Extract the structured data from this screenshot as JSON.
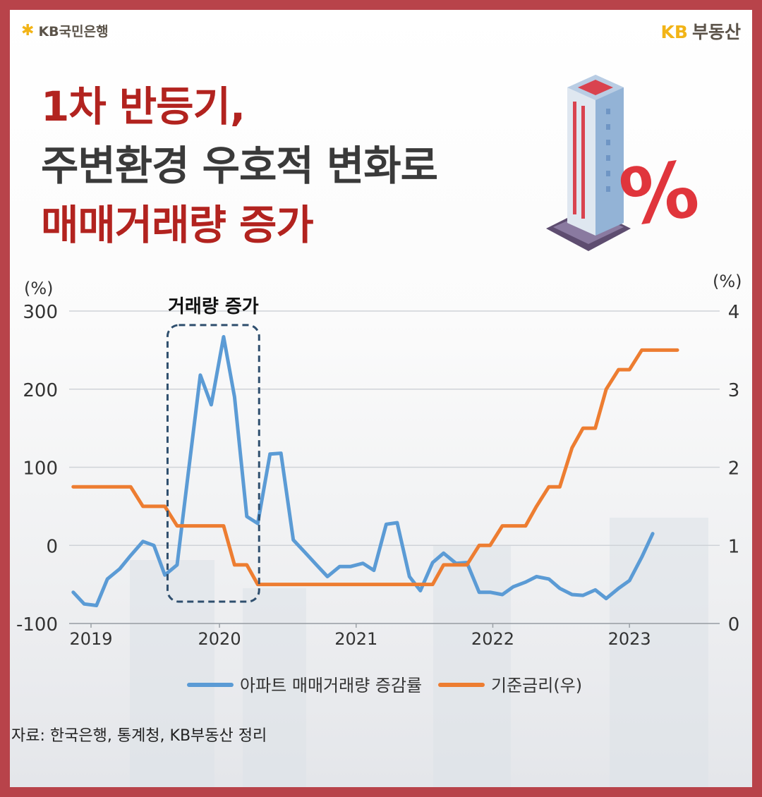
{
  "header": {
    "left_brand": "KB국민은행",
    "right_brand_kb": "KB",
    "right_brand_text": "부동산"
  },
  "title": {
    "line1": "1차 반등기,",
    "line2": "주변환경 우호적 변화로",
    "line3": "매매거래량 증가"
  },
  "source": "자료: 한국은행, 통계청, KB부동산 정리",
  "chart_data": {
    "type": "line",
    "left_axis_unit": "(%)",
    "right_axis_unit": "(%)",
    "y_left_range": [
      -100,
      300
    ],
    "y_left_ticks": [
      "300",
      "200",
      "100",
      "0",
      "-100"
    ],
    "y_right_range": [
      0,
      4
    ],
    "y_right_ticks": [
      "4",
      "3",
      "2",
      "1",
      "0"
    ],
    "x_range": [
      2018.9,
      2023.66
    ],
    "x_ticks": [
      {
        "value": 2019.06,
        "label": "2019"
      },
      {
        "value": 2020.0,
        "label": "2020"
      },
      {
        "value": 2021.0,
        "label": "2021"
      },
      {
        "value": 2022.0,
        "label": "2022"
      },
      {
        "value": 2023.0,
        "label": "2023"
      }
    ],
    "annotation": {
      "label": "거래량 증가",
      "x_range": [
        2019.62,
        2020.29
      ],
      "y_range": [
        -72,
        282
      ]
    },
    "series": [
      {
        "name": "아파트 매매거래량 증감률",
        "axis": "left",
        "color": "#5b9bd5",
        "points": [
          [
            2018.93,
            -60
          ],
          [
            2019.01,
            -75
          ],
          [
            2019.1,
            -77
          ],
          [
            2019.18,
            -43
          ],
          [
            2019.27,
            -30
          ],
          [
            2019.35,
            -13
          ],
          [
            2019.44,
            5
          ],
          [
            2019.52,
            0
          ],
          [
            2019.6,
            -38
          ],
          [
            2019.69,
            -25
          ],
          [
            2019.77,
            90
          ],
          [
            2019.86,
            218
          ],
          [
            2019.94,
            180
          ],
          [
            2020.03,
            267
          ],
          [
            2020.11,
            190
          ],
          [
            2020.2,
            37
          ],
          [
            2020.28,
            28
          ],
          [
            2020.37,
            117
          ],
          [
            2020.45,
            118
          ],
          [
            2020.54,
            7
          ],
          [
            2020.62,
            -8
          ],
          [
            2020.71,
            -25
          ],
          [
            2020.79,
            -40
          ],
          [
            2020.88,
            -27
          ],
          [
            2020.96,
            -27
          ],
          [
            2021.05,
            -23
          ],
          [
            2021.13,
            -32
          ],
          [
            2021.22,
            27
          ],
          [
            2021.3,
            29
          ],
          [
            2021.39,
            -40
          ],
          [
            2021.47,
            -58
          ],
          [
            2021.56,
            -22
          ],
          [
            2021.64,
            -10
          ],
          [
            2021.73,
            -23
          ],
          [
            2021.81,
            -22
          ],
          [
            2021.9,
            -60
          ],
          [
            2021.98,
            -60
          ],
          [
            2022.07,
            -63
          ],
          [
            2022.15,
            -53
          ],
          [
            2022.24,
            -47
          ],
          [
            2022.32,
            -40
          ],
          [
            2022.41,
            -43
          ],
          [
            2022.49,
            -55
          ],
          [
            2022.58,
            -63
          ],
          [
            2022.66,
            -64
          ],
          [
            2022.75,
            -57
          ],
          [
            2022.83,
            -68
          ],
          [
            2022.92,
            -55
          ],
          [
            2023.0,
            -45
          ],
          [
            2023.09,
            -15
          ],
          [
            2023.17,
            15
          ]
        ]
      },
      {
        "name": "기준금리(우)",
        "axis": "right",
        "color": "#ed7d31",
        "points": [
          [
            2018.93,
            1.75
          ],
          [
            2019.35,
            1.75
          ],
          [
            2019.44,
            1.5
          ],
          [
            2019.6,
            1.5
          ],
          [
            2019.69,
            1.25
          ],
          [
            2019.77,
            1.25
          ],
          [
            2019.94,
            1.25
          ],
          [
            2020.03,
            1.25
          ],
          [
            2020.11,
            0.75
          ],
          [
            2020.2,
            0.75
          ],
          [
            2020.28,
            0.5
          ],
          [
            2020.45,
            0.5
          ],
          [
            2021.56,
            0.5
          ],
          [
            2021.64,
            0.75
          ],
          [
            2021.81,
            0.75
          ],
          [
            2021.9,
            1.0
          ],
          [
            2021.98,
            1.0
          ],
          [
            2022.07,
            1.25
          ],
          [
            2022.24,
            1.25
          ],
          [
            2022.32,
            1.5
          ],
          [
            2022.41,
            1.75
          ],
          [
            2022.49,
            1.75
          ],
          [
            2022.58,
            2.25
          ],
          [
            2022.66,
            2.5
          ],
          [
            2022.75,
            2.5
          ],
          [
            2022.83,
            3.0
          ],
          [
            2022.92,
            3.25
          ],
          [
            2023.0,
            3.25
          ],
          [
            2023.09,
            3.5
          ],
          [
            2023.35,
            3.5
          ]
        ]
      }
    ],
    "legend_position": "bottom-center",
    "grid": true
  }
}
